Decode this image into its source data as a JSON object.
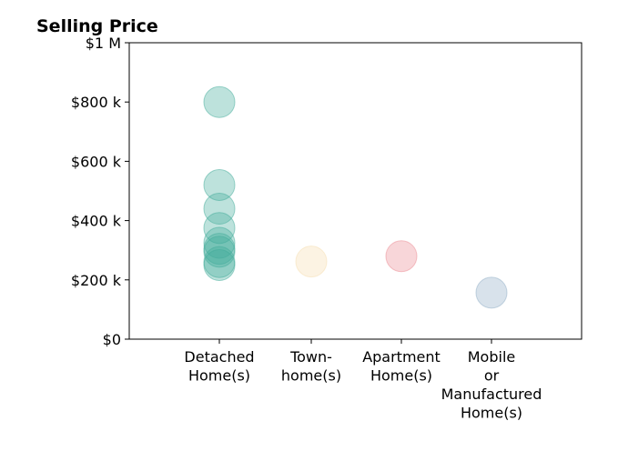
{
  "chart_data": {
    "type": "scatter",
    "title": "Selling Price",
    "xlabel": "",
    "ylabel": "",
    "categories": [
      [
        "Detached",
        "Home(s)"
      ],
      [
        "Town-",
        "home(s)"
      ],
      [
        "Apartment",
        "Home(s)"
      ],
      [
        "Mobile",
        "or",
        "Manufactured",
        "Home(s)"
      ]
    ],
    "y_ticks": [
      {
        "value": 0,
        "label": "$0"
      },
      {
        "value": 200000,
        "label": "$200 k"
      },
      {
        "value": 400000,
        "label": "$400 k"
      },
      {
        "value": 600000,
        "label": "$600 k"
      },
      {
        "value": 800000,
        "label": "$800 k"
      },
      {
        "value": 1000000,
        "label": "$1 M"
      }
    ],
    "ylim": [
      0,
      1000000
    ],
    "grid": false,
    "legend": "none",
    "series": [
      {
        "category_index": 0,
        "color": "#41ab9a",
        "values": [
          800000,
          520000,
          440000,
          375000,
          325000,
          305000,
          295000,
          260000,
          250000
        ]
      },
      {
        "category_index": 1,
        "color": "#f5deb0",
        "values": [
          262000
        ]
      },
      {
        "category_index": 2,
        "color": "#ec8a92",
        "values": [
          280000
        ]
      },
      {
        "category_index": 3,
        "color": "#8fadc6",
        "values": [
          157000
        ]
      }
    ]
  }
}
